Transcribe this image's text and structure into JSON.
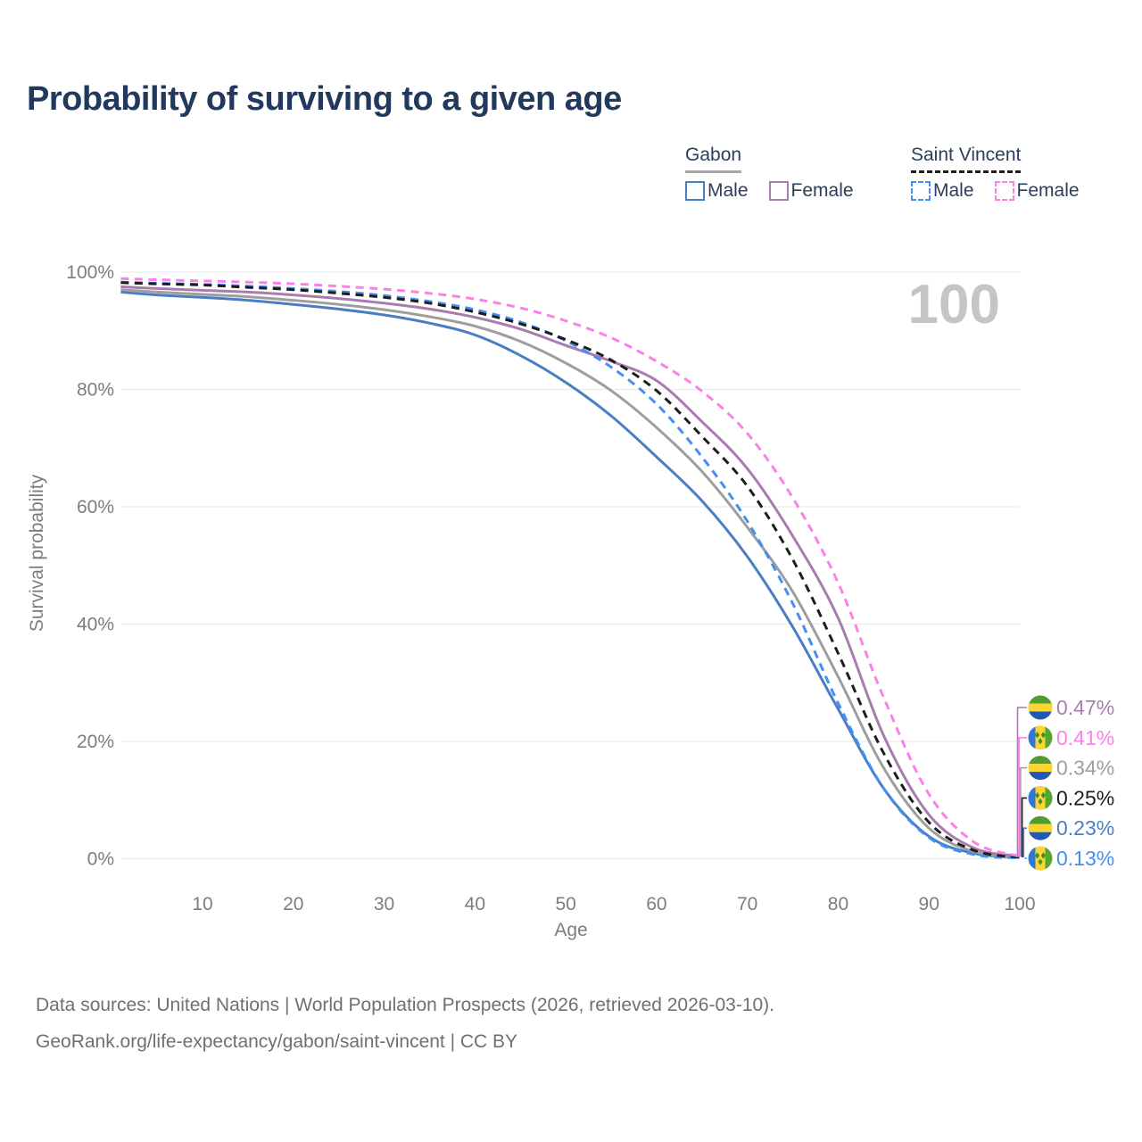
{
  "title": "Probability of surviving to a given age",
  "legend": {
    "groups": [
      {
        "name": "Gabon",
        "line_style": "solid",
        "line_color": "#a6a6a6",
        "items": [
          {
            "label": "Male",
            "color": "#4a7ec4"
          },
          {
            "label": "Female",
            "color": "#a87cae"
          }
        ]
      },
      {
        "name": "Saint Vincent",
        "line_style": "dashed",
        "line_color": "#1d1d1d",
        "items": [
          {
            "label": "Male",
            "color": "#448ef4"
          },
          {
            "label": "Female",
            "color": "#fb80e8"
          }
        ]
      }
    ]
  },
  "chart_data": {
    "type": "line",
    "title": "Probability of surviving to a given age",
    "xlabel": "Age",
    "ylabel": "Survival probability",
    "xlim": [
      1,
      100
    ],
    "ylim": [
      0,
      100
    ],
    "grid": "horizontal",
    "legend_position": "top-right",
    "watermark": "100",
    "x_ticks": [
      10,
      20,
      30,
      40,
      50,
      60,
      70,
      80,
      90,
      100
    ],
    "y_ticks": [
      {
        "value": 0,
        "label": "0%"
      },
      {
        "value": 20,
        "label": "20%"
      },
      {
        "value": 40,
        "label": "40%"
      },
      {
        "value": 60,
        "label": "60%"
      },
      {
        "value": 80,
        "label": "80%"
      },
      {
        "value": 100,
        "label": "100%"
      }
    ],
    "ages": [
      1,
      5,
      10,
      15,
      20,
      25,
      30,
      35,
      40,
      45,
      50,
      55,
      60,
      65,
      70,
      75,
      80,
      85,
      90,
      95,
      100
    ],
    "series": [
      {
        "name": "Gabon Male",
        "country": "Gabon",
        "sex": "Male",
        "color": "#4a7ec4",
        "dashed": false,
        "flag": "gabon",
        "end_label": "0.23%",
        "label_row": 4,
        "values": [
          96.6,
          96.1,
          95.7,
          95.2,
          94.5,
          93.7,
          92.7,
          91.3,
          89.3,
          85.8,
          81.2,
          75.5,
          68.5,
          61.0,
          51.5,
          39.5,
          25.5,
          12.0,
          3.8,
          0.9,
          0.23
        ]
      },
      {
        "name": "Gabon Both sexes",
        "country": "Gabon",
        "sex": "Both",
        "color": "#9e9e9e",
        "dashed": false,
        "flag": "gabon",
        "end_label": "0.34%",
        "label_row": 2,
        "values": [
          97.0,
          96.6,
          96.2,
          95.8,
          95.2,
          94.5,
          93.6,
          92.4,
          90.8,
          88.2,
          84.5,
          79.8,
          73.5,
          66.0,
          56.5,
          45.5,
          31.0,
          15.5,
          5.2,
          1.2,
          0.34
        ]
      },
      {
        "name": "Gabon Female",
        "country": "Gabon",
        "sex": "Female",
        "color": "#a87cae",
        "dashed": false,
        "flag": "gabon",
        "end_label": "0.47%",
        "label_row": 0,
        "values": [
          97.5,
          97.2,
          96.9,
          96.6,
          96.1,
          95.5,
          94.7,
          93.7,
          92.3,
          90.3,
          87.5,
          84.8,
          81.5,
          74.5,
          66.5,
          55.0,
          41.0,
          21.0,
          7.5,
          1.8,
          0.47
        ]
      },
      {
        "name": "Saint Vincent Male",
        "country": "Saint Vincent",
        "sex": "Male",
        "color": "#448ef4",
        "dashed": true,
        "flag": "saint-vincent",
        "end_label": "0.13%",
        "label_row": 5,
        "values": [
          98.3,
          98.1,
          97.9,
          97.6,
          97.2,
          96.7,
          96.0,
          95.0,
          93.6,
          91.5,
          88.3,
          83.8,
          77.5,
          68.5,
          57.5,
          43.5,
          26.5,
          12.0,
          3.6,
          0.7,
          0.13
        ]
      },
      {
        "name": "Saint Vincent Both sexes",
        "country": "Saint Vincent",
        "sex": "Both",
        "color": "#1d1d1d",
        "dashed": true,
        "flag": "saint-vincent",
        "end_label": "0.25%",
        "label_row": 3,
        "values": [
          98.2,
          98.0,
          97.8,
          97.4,
          97.0,
          96.4,
          95.7,
          94.7,
          93.2,
          91.2,
          88.5,
          85.0,
          79.8,
          72.0,
          63.5,
          51.0,
          35.0,
          18.0,
          6.2,
          1.4,
          0.25
        ]
      },
      {
        "name": "Saint Vincent Female",
        "country": "Saint Vincent",
        "sex": "Female",
        "color": "#fb80e8",
        "dashed": true,
        "flag": "saint-vincent",
        "end_label": "0.41%",
        "label_row": 1,
        "values": [
          98.9,
          98.7,
          98.5,
          98.3,
          98.0,
          97.6,
          97.1,
          96.4,
          95.4,
          93.9,
          91.7,
          88.8,
          84.8,
          79.7,
          72.5,
          61.5,
          47.0,
          27.5,
          11.0,
          2.8,
          0.41
        ]
      }
    ],
    "flag_colors": {
      "gabon": {
        "green": "#4f9d31",
        "yellow": "#fcd535",
        "blue": "#2059b3"
      },
      "saint_vincent": {
        "blue": "#3178d6",
        "yellow": "#fcd535",
        "green": "#55a630",
        "diamond": "#3f9324"
      }
    }
  },
  "style": {
    "axis_text_color": "#7d7d7d",
    "grid_color": "#ececec",
    "watermark_color": "#c5c5c5",
    "title_color": "#21395d"
  },
  "footer": {
    "line1": "Data sources: United Nations | World Population Prospects (2026, retrieved 2026-03-10).",
    "line2": "GeoRank.org/life-expectancy/gabon/saint-vincent | CC BY"
  }
}
